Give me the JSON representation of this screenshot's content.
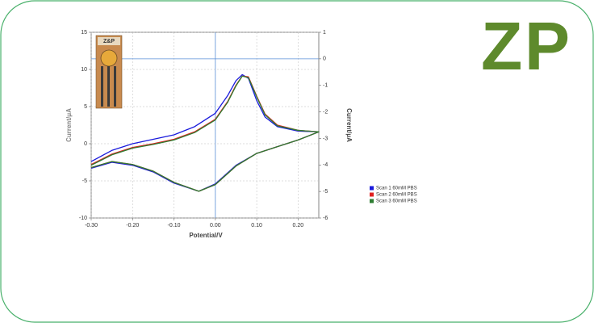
{
  "logo": "ZP",
  "inset_label": "Z&P",
  "chart_data": {
    "type": "line",
    "x_label": "Potential/V",
    "y_label": "Current/μA",
    "y2_label": "Current/μA",
    "x": [
      -0.3,
      -0.25,
      -0.2,
      -0.15,
      -0.1,
      -0.05,
      0.0,
      0.03,
      0.05,
      0.065,
      0.08,
      0.1,
      0.12,
      0.15,
      0.2,
      0.25,
      0.2,
      0.15,
      0.1,
      0.05,
      0.0,
      -0.04,
      -0.1,
      -0.15,
      -0.2,
      -0.25,
      -0.3
    ],
    "series": [
      {
        "name": "Scan 1  60mM PBS",
        "color": "#1a1adc",
        "values": [
          -2.4,
          -0.9,
          0.0,
          0.6,
          1.2,
          2.3,
          4.1,
          6.5,
          8.5,
          9.3,
          8.8,
          5.8,
          3.6,
          2.3,
          1.7,
          1.6,
          0.5,
          -0.4,
          -1.3,
          -2.9,
          -5.4,
          -6.4,
          -5.3,
          -3.8,
          -2.9,
          -2.5,
          -3.3
        ]
      },
      {
        "name": "Scan 2  60mM PBS",
        "color": "#e02020",
        "values": [
          -2.8,
          -1.4,
          -0.5,
          0.0,
          0.6,
          1.6,
          3.3,
          5.7,
          7.9,
          9.1,
          9.0,
          6.4,
          4.0,
          2.5,
          1.8,
          1.6,
          0.5,
          -0.4,
          -1.3,
          -3.0,
          -5.5,
          -6.4,
          -5.2,
          -3.7,
          -2.8,
          -2.4,
          -3.2
        ]
      },
      {
        "name": "Scan 3  60mM PBS",
        "color": "#2e7d32",
        "values": [
          -2.9,
          -1.5,
          -0.6,
          -0.1,
          0.5,
          1.5,
          3.2,
          5.6,
          7.8,
          9.1,
          8.9,
          6.3,
          3.9,
          2.4,
          1.8,
          1.6,
          0.5,
          -0.4,
          -1.3,
          -3.0,
          -5.5,
          -6.4,
          -5.2,
          -3.7,
          -2.8,
          -2.4,
          -3.2
        ]
      }
    ],
    "xlim": [
      -0.3,
      0.25
    ],
    "xticks": [
      {
        "value": -0.3,
        "label": "-0.30"
      },
      {
        "value": -0.2,
        "label": "-0.20"
      },
      {
        "value": -0.1,
        "label": "-0.10"
      },
      {
        "value": 0.0,
        "label": "0.00"
      },
      {
        "value": 0.1,
        "label": "0.10"
      },
      {
        "value": 0.2,
        "label": "0.20"
      }
    ],
    "ylim": [
      -10,
      15
    ],
    "yticks": [
      -10,
      -5,
      0,
      5,
      10,
      15
    ],
    "y2lim": [
      -6,
      1
    ],
    "y2ticks": [
      -6,
      -5,
      -4,
      -3,
      -2,
      -1,
      0,
      1
    ],
    "grid": true,
    "crosshair_color": "#5a8fd8"
  }
}
